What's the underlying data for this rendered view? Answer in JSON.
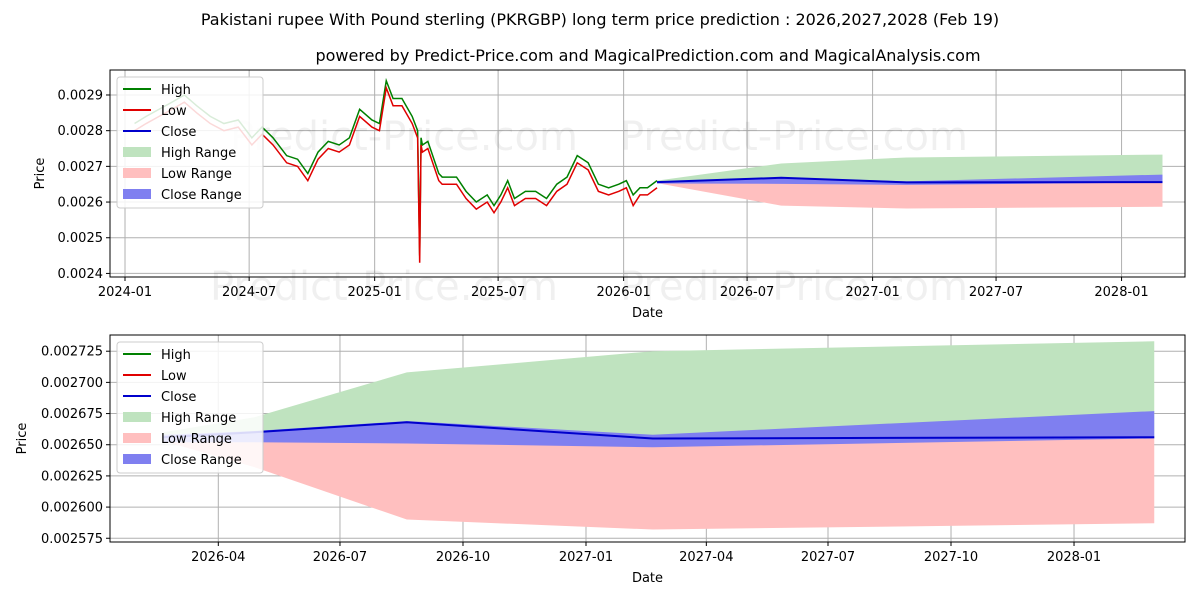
{
  "title": "Pakistani rupee With Pound sterling (PKRGBP) long term price prediction : 2026,2027,2028 (Feb 19)",
  "subtitle": "powered by Predict-Price.com and MagicalPrediction.com and MagicalAnalysis.com",
  "watermark": "Predict-Price.com",
  "colors": {
    "high": "#008000",
    "low": "#e00000",
    "close": "#0000cc",
    "high_range": "#bfe3bf",
    "low_range": "#ffbfbf",
    "close_range": "#7f7ff0"
  },
  "legend": [
    "High",
    "Low",
    "Close",
    "High Range",
    "Low Range",
    "Close Range"
  ],
  "chart_data": [
    {
      "type": "line",
      "panel": "full-history",
      "xlabel": "Date",
      "ylabel": "Price",
      "xlim": [
        "2023-12-10",
        "2028-04-03"
      ],
      "ylim": [
        0.00239,
        0.00297
      ],
      "x_ticks": [
        "2024-01",
        "2024-07",
        "2025-01",
        "2025-07",
        "2026-01",
        "2026-07",
        "2027-01",
        "2027-07",
        "2028-01"
      ],
      "y_ticks": [
        0.0024,
        0.0025,
        0.0026,
        0.0027,
        0.0028,
        0.0029
      ],
      "y_tick_labels": [
        "0.0024",
        "0.0025",
        "0.0026",
        "0.0027",
        "0.0028",
        "0.0029"
      ],
      "legend_position": "top-left",
      "history": {
        "x": [
          "2024-01-15",
          "2024-02-01",
          "2024-02-20",
          "2024-03-10",
          "2024-03-28",
          "2024-04-15",
          "2024-05-05",
          "2024-05-25",
          "2024-06-15",
          "2024-07-05",
          "2024-07-20",
          "2024-08-05",
          "2024-08-25",
          "2024-09-10",
          "2024-09-25",
          "2024-10-10",
          "2024-10-25",
          "2024-11-10",
          "2024-11-25",
          "2024-12-10",
          "2024-12-28",
          "2025-01-08",
          "2025-01-18",
          "2025-01-28",
          "2025-02-10",
          "2025-02-25",
          "2025-03-05",
          "2025-03-08",
          "2025-03-10",
          "2025-03-12",
          "2025-03-20",
          "2025-04-05",
          "2025-04-10",
          "2025-04-18",
          "2025-05-01",
          "2025-05-15",
          "2025-05-30",
          "2025-06-15",
          "2025-06-25",
          "2025-07-05",
          "2025-07-15",
          "2025-07-25",
          "2025-08-10",
          "2025-08-25",
          "2025-09-10",
          "2025-09-25",
          "2025-10-10",
          "2025-10-25",
          "2025-11-10",
          "2025-11-25",
          "2025-12-10",
          "2025-12-25",
          "2026-01-05",
          "2026-01-15",
          "2026-01-25",
          "2026-02-05",
          "2026-02-19"
        ],
        "high": [
          0.00282,
          0.00284,
          0.00286,
          0.00288,
          0.0029,
          0.00287,
          0.00284,
          0.00282,
          0.00283,
          0.00278,
          0.00281,
          0.00278,
          0.00273,
          0.00272,
          0.00268,
          0.00274,
          0.00277,
          0.00276,
          0.00278,
          0.00286,
          0.00283,
          0.00282,
          0.00294,
          0.00289,
          0.00289,
          0.00284,
          0.0028,
          0.00245,
          0.00278,
          0.00276,
          0.00277,
          0.00268,
          0.00267,
          0.00267,
          0.00267,
          0.00263,
          0.0026,
          0.00262,
          0.00259,
          0.00262,
          0.00266,
          0.00261,
          0.00263,
          0.00263,
          0.00261,
          0.00265,
          0.00267,
          0.00273,
          0.00271,
          0.00265,
          0.00264,
          0.00265,
          0.00266,
          0.00262,
          0.00264,
          0.00264,
          0.00266
        ],
        "low": [
          0.0028,
          0.00282,
          0.00284,
          0.00286,
          0.00288,
          0.00285,
          0.00282,
          0.0028,
          0.00281,
          0.00276,
          0.00279,
          0.00276,
          0.00271,
          0.0027,
          0.00266,
          0.00272,
          0.00275,
          0.00274,
          0.00276,
          0.00284,
          0.00281,
          0.0028,
          0.00292,
          0.00287,
          0.00287,
          0.00282,
          0.00278,
          0.00243,
          0.00276,
          0.00274,
          0.00275,
          0.00266,
          0.00265,
          0.00265,
          0.00265,
          0.00261,
          0.00258,
          0.0026,
          0.00257,
          0.0026,
          0.00264,
          0.00259,
          0.00261,
          0.00261,
          0.00259,
          0.00263,
          0.00265,
          0.00271,
          0.00269,
          0.00263,
          0.00262,
          0.00263,
          0.00264,
          0.00259,
          0.00262,
          0.00262,
          0.00264
        ]
      },
      "forecast": {
        "x": [
          "2026-02-19",
          "2026-08-20",
          "2027-02-20",
          "2028-03-01"
        ],
        "close": [
          0.002656,
          0.002668,
          0.002655,
          0.002656
        ],
        "high_range": [
          0.00266,
          0.002708,
          0.002725,
          0.002733
        ],
        "low_range": [
          0.002653,
          0.00259,
          0.002582,
          0.002587
        ],
        "close_range_upper": [
          0.002658,
          0.002669,
          0.002658,
          0.002677
        ],
        "close_range_lower": [
          0.002652,
          0.002651,
          0.002648,
          0.002655
        ]
      }
    },
    {
      "type": "area",
      "panel": "forecast-zoom",
      "xlabel": "Date",
      "ylabel": "Price",
      "xlim": [
        "2026-01-10",
        "2028-03-24"
      ],
      "ylim": [
        0.002572,
        0.002738
      ],
      "x_ticks": [
        "2026-04",
        "2026-07",
        "2026-10",
        "2027-01",
        "2027-04",
        "2027-07",
        "2027-10",
        "2028-01"
      ],
      "y_ticks": [
        0.002575,
        0.0026,
        0.002625,
        0.00265,
        0.002675,
        0.0027,
        0.002725
      ],
      "y_tick_labels": [
        "0.002575",
        "0.002600",
        "0.002625",
        "0.002650",
        "0.002675",
        "0.002700",
        "0.002725"
      ],
      "legend_position": "top-left",
      "series": {
        "x": [
          "2026-02-19",
          "2026-04-28",
          "2026-08-20",
          "2027-02-20",
          "2028-03-01"
        ],
        "close": [
          0.002656,
          0.00266,
          0.002668,
          0.002655,
          0.002656
        ],
        "high_range": [
          0.00266,
          0.002672,
          0.002708,
          0.002725,
          0.002733
        ],
        "low_range": [
          0.002653,
          0.002632,
          0.00259,
          0.002582,
          0.002587
        ],
        "close_range_upper": [
          0.002658,
          0.002661,
          0.002669,
          0.002658,
          0.002677
        ],
        "close_range_lower": [
          0.002652,
          0.002652,
          0.002651,
          0.002648,
          0.002655
        ]
      }
    }
  ]
}
